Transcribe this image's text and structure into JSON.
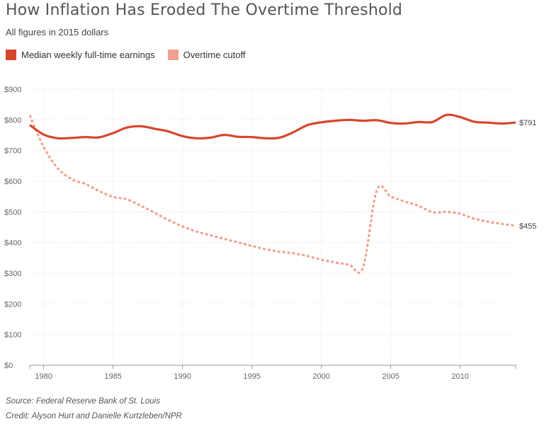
{
  "chart_data": {
    "type": "line",
    "title": "How Inflation Has Eroded The Overtime Threshold",
    "subtitle": "All figures in 2015 dollars",
    "x_ticks": [
      "1980",
      "1985",
      "1990",
      "1995",
      "2000",
      "2005",
      "2010"
    ],
    "y_ticks": [
      "$0",
      "$100",
      "$200",
      "$300",
      "$400",
      "$500",
      "$600",
      "$700",
      "$800",
      "$900"
    ],
    "xlim": [
      1979,
      2014
    ],
    "ylim": [
      0,
      900
    ],
    "grid": true,
    "legend_position": "top-left",
    "series": [
      {
        "name": "Median weekly full-time earnings",
        "color": "#d6472d",
        "style": "solid",
        "end_label": "$791",
        "x": [
          1979,
          1980,
          1981,
          1982,
          1983,
          1984,
          1985,
          1986,
          1987,
          1988,
          1989,
          1990,
          1991,
          1992,
          1993,
          1994,
          1995,
          1996,
          1997,
          1998,
          1999,
          2000,
          2001,
          2002,
          2003,
          2004,
          2005,
          2006,
          2007,
          2008,
          2009,
          2010,
          2011,
          2012,
          2013,
          2014
        ],
        "y": [
          783,
          752,
          740,
          741,
          744,
          743,
          757,
          775,
          779,
          771,
          762,
          747,
          740,
          742,
          751,
          745,
          744,
          740,
          742,
          760,
          783,
          792,
          797,
          800,
          797,
          799,
          790,
          788,
          793,
          793,
          816,
          809,
          794,
          791,
          788,
          791
        ]
      },
      {
        "name": "Overtime cutoff",
        "color": "#f0a08e",
        "style": "dashed",
        "end_label": "$455",
        "x": [
          1979,
          1980,
          1981,
          1982,
          1983,
          1984,
          1985,
          1986,
          1987,
          1988,
          1989,
          1990,
          1991,
          1992,
          1993,
          1994,
          1995,
          1996,
          1997,
          1998,
          1999,
          2000,
          2001,
          2002,
          2003,
          2004,
          2005,
          2006,
          2007,
          2008,
          2009,
          2010,
          2011,
          2012,
          2013,
          2014
        ],
        "y": [
          815,
          712,
          643,
          607,
          591,
          568,
          549,
          541,
          520,
          497,
          473,
          453,
          436,
          424,
          412,
          401,
          389,
          378,
          370,
          365,
          356,
          344,
          335,
          328,
          318,
          571,
          550,
          534,
          520,
          499,
          500,
          494,
          478,
          468,
          461,
          455
        ]
      }
    ]
  },
  "footer": {
    "source": "Source: Federal Reserve Bank of St. Louis",
    "credit": "Credit: Alyson Hurt and Danielle Kurtzleben/NPR"
  }
}
